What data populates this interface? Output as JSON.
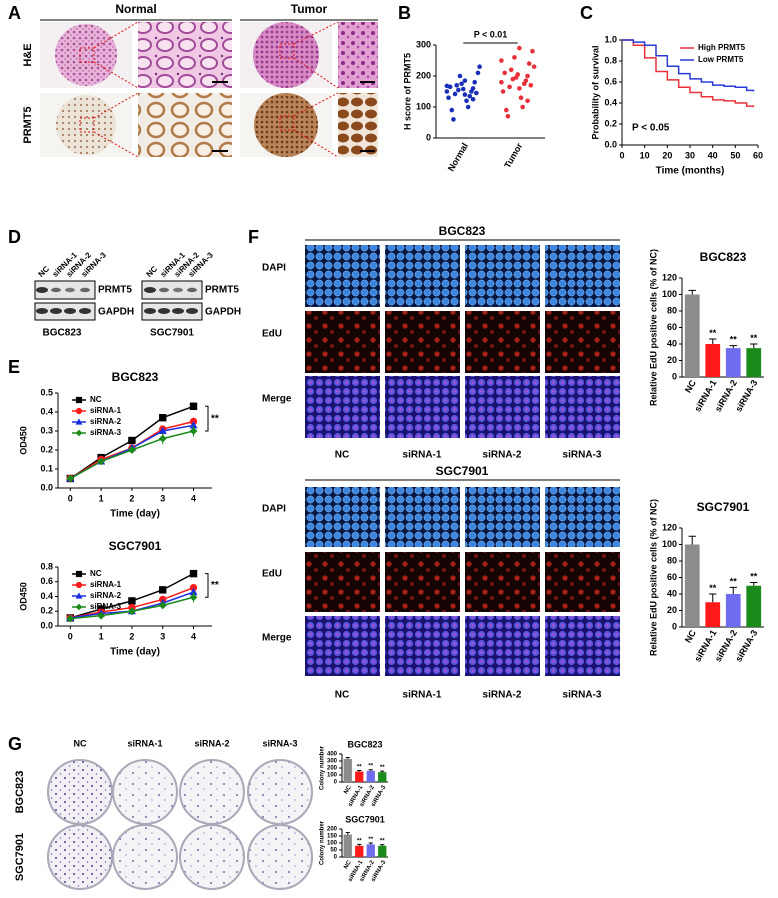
{
  "panels": {
    "labels": [
      "A",
      "B",
      "C",
      "D",
      "E",
      "F",
      "G"
    ]
  },
  "panel_a": {
    "columns": [
      "Normal",
      "Tumor"
    ],
    "rows": [
      "H&E",
      "PRMT5"
    ]
  },
  "panel_d": {
    "lanes": [
      "NC",
      "siRNA-1",
      "siRNA-2",
      "siRNA-3"
    ],
    "bands": [
      "PRMT5",
      "GAPDH"
    ],
    "cell_lines": [
      "BGC823",
      "SGC7901"
    ]
  },
  "panel_f": {
    "cell_lines": [
      "BGC823",
      "SGC7901"
    ],
    "rows": [
      "DAPI",
      "EdU",
      "Merge"
    ],
    "columns": [
      "NC",
      "siRNA-1",
      "siRNA-2",
      "siRNA-3"
    ]
  },
  "panel_g": {
    "columns": [
      "NC",
      "siRNA-1",
      "siRNA-2",
      "siRNA-3"
    ],
    "rows": [
      "BGC823",
      "SGC7901"
    ]
  },
  "chart_data": [
    {
      "type": "scatter",
      "y_label": "H score of PRMT5",
      "annotation": "P < 0.01",
      "categories": [
        "Normal",
        "Tumor"
      ],
      "groups": [
        {
          "color": "#1a2fb8",
          "values": [
            150,
            160,
            140,
            170,
            130,
            180,
            120,
            155,
            165,
            145,
            100,
            200,
            90,
            210,
            135,
            175,
            60,
            230,
            150,
            158,
            142,
            168,
            125,
            185
          ]
        },
        {
          "color": "#e8303a",
          "values": [
            180,
            200,
            160,
            220,
            150,
            240,
            130,
            190,
            210,
            170,
            100,
            260,
            90,
            280,
            175,
            195,
            70,
            230,
            185,
            205,
            165,
            250,
            120,
            290
          ]
        }
      ],
      "ylim": [
        0,
        300
      ],
      "yticks": [
        0,
        100,
        200,
        300
      ]
    },
    {
      "type": "line",
      "step": true,
      "y_label": "Probability of survival",
      "x_label": "Time (months)",
      "annotation": "P < 0.05",
      "legend": "upper right",
      "x": [
        0,
        5,
        10,
        15,
        20,
        25,
        30,
        35,
        40,
        45,
        50,
        55,
        58
      ],
      "series": [
        {
          "name": "High PRMT5",
          "color": "#e8303a",
          "values": [
            1.0,
            0.95,
            0.83,
            0.7,
            0.62,
            0.55,
            0.5,
            0.46,
            0.43,
            0.42,
            0.4,
            0.37,
            0.36
          ]
        },
        {
          "name": "Low PRMT5",
          "color": "#2a3bd8",
          "values": [
            1.0,
            0.98,
            0.95,
            0.85,
            0.75,
            0.68,
            0.63,
            0.6,
            0.57,
            0.56,
            0.55,
            0.52,
            0.51
          ]
        }
      ],
      "xlim": [
        0,
        60
      ],
      "xticks": [
        0,
        10,
        20,
        30,
        40,
        50,
        60
      ],
      "ylim": [
        0,
        1
      ],
      "yticks": [
        {
          "value": 0,
          "label": "0.0"
        },
        0.2,
        0.4,
        0.6,
        0.8,
        {
          "value": 1,
          "label": "1.0"
        }
      ]
    },
    {
      "type": "line",
      "title": "BGC823",
      "x_label": "Time (day)",
      "y_label": "OD450",
      "annotation": "**",
      "legend": "upper left",
      "x": [
        0,
        1,
        2,
        3,
        4
      ],
      "xlim": [
        -0.4,
        4.6
      ],
      "xticks": [
        0,
        1,
        2,
        3,
        4
      ],
      "ylim": [
        0,
        0.5
      ],
      "yticks": [
        {
          "value": 0,
          "label": "0.0"
        },
        0.1,
        0.2,
        0.3,
        0.4,
        0.5
      ],
      "series": [
        {
          "name": "NC",
          "color": "#000000",
          "marker": "square",
          "values": [
            0.05,
            0.16,
            0.25,
            0.37,
            0.43
          ],
          "errors": [
            0.005,
            0.01,
            0.01,
            0.01,
            0.02
          ]
        },
        {
          "name": "siRNA-1",
          "color": "#ff1a1a",
          "marker": "circle",
          "values": [
            0.05,
            0.15,
            0.21,
            0.31,
            0.35
          ],
          "errors": [
            0.005,
            0.01,
            0.01,
            0.01,
            0.02
          ]
        },
        {
          "name": "siRNA-2",
          "color": "#1a2fe0",
          "marker": "triangle",
          "values": [
            0.05,
            0.14,
            0.21,
            0.3,
            0.33
          ],
          "errors": [
            0.005,
            0.01,
            0.01,
            0.02,
            0.02
          ]
        },
        {
          "name": "siRNA-3",
          "color": "#1a8a1a",
          "marker": "diamond",
          "values": [
            0.05,
            0.14,
            0.2,
            0.26,
            0.3
          ],
          "errors": [
            0.005,
            0.01,
            0.01,
            0.03,
            0.03
          ]
        }
      ]
    },
    {
      "type": "line",
      "title": "SGC7901",
      "x_label": "Time (day)",
      "y_label": "OD450",
      "annotation": "**",
      "legend": "upper left",
      "x": [
        0,
        1,
        2,
        3,
        4
      ],
      "xlim": [
        -0.4,
        4.6
      ],
      "xticks": [
        0,
        1,
        2,
        3,
        4
      ],
      "ylim": [
        0,
        0.8
      ],
      "yticks": [
        {
          "value": 0,
          "label": "0.0"
        },
        0.2,
        0.4,
        0.6,
        0.8
      ],
      "series": [
        {
          "name": "NC",
          "color": "#000000",
          "marker": "square",
          "values": [
            0.11,
            0.23,
            0.34,
            0.49,
            0.71
          ],
          "errors": [
            0.01,
            0.02,
            0.02,
            0.02,
            0.04
          ]
        },
        {
          "name": "siRNA-1",
          "color": "#ff1a1a",
          "marker": "circle",
          "values": [
            0.11,
            0.19,
            0.25,
            0.36,
            0.52
          ],
          "errors": [
            0.01,
            0.02,
            0.03,
            0.04,
            0.05
          ]
        },
        {
          "name": "siRNA-2",
          "color": "#1a2fe0",
          "marker": "triangle",
          "values": [
            0.11,
            0.17,
            0.2,
            0.31,
            0.46
          ],
          "errors": [
            0.01,
            0.03,
            0.05,
            0.05,
            0.06
          ]
        },
        {
          "name": "siRNA-3",
          "color": "#1a8a1a",
          "marker": "diamond",
          "values": [
            0.1,
            0.14,
            0.2,
            0.28,
            0.39
          ],
          "errors": [
            0.01,
            0.02,
            0.03,
            0.04,
            0.07
          ]
        }
      ]
    },
    {
      "type": "bar",
      "title": "BGC823",
      "y_label": "Relative EdU positive cells (% of NC)",
      "categories": [
        "NC",
        "siRNA-1",
        "siRNA-2",
        "siRNA-3"
      ],
      "colors": [
        "#8c8c8c",
        "#ff1a1a",
        "#6f6cf0",
        "#1a8a1a"
      ],
      "values": [
        100,
        40,
        35,
        35
      ],
      "errors": [
        5,
        6,
        3,
        5
      ],
      "significance": [
        null,
        "**",
        "**",
        "**"
      ],
      "ylim": [
        0,
        120
      ],
      "yticks": [
        0,
        20,
        40,
        60,
        80,
        100,
        120
      ]
    },
    {
      "type": "bar",
      "title": "SGC7901",
      "y_label": "Relative EdU positive cells (% of NC)",
      "categories": [
        "NC",
        "siRNA-1",
        "siRNA-2",
        "siRNA-3"
      ],
      "colors": [
        "#8c8c8c",
        "#ff1a1a",
        "#6f6cf0",
        "#1a8a1a"
      ],
      "values": [
        100,
        30,
        40,
        50
      ],
      "errors": [
        10,
        10,
        8,
        4
      ],
      "significance": [
        null,
        "**",
        "**",
        "**"
      ],
      "ylim": [
        0,
        120
      ],
      "yticks": [
        0,
        20,
        40,
        60,
        80,
        100,
        120
      ]
    },
    {
      "type": "bar",
      "title": "BGC823",
      "y_label": "Colony number",
      "categories": [
        "NC",
        "siRNA-1",
        "siRNA-2",
        "siRNA-3"
      ],
      "colors": [
        "#8c8c8c",
        "#ff1a1a",
        "#6f6cf0",
        "#1a8a1a"
      ],
      "values": [
        330,
        150,
        160,
        140
      ],
      "errors": [
        20,
        15,
        15,
        15
      ],
      "significance": [
        null,
        "**",
        "**",
        "**"
      ],
      "ylim": [
        0,
        400
      ],
      "yticks": [
        0,
        100,
        200,
        300,
        400
      ]
    },
    {
      "type": "bar",
      "title": "SGC7901",
      "y_label": "Colony number",
      "categories": [
        "NC",
        "siRNA-1",
        "siRNA-2",
        "siRNA-3"
      ],
      "colors": [
        "#8c8c8c",
        "#ff1a1a",
        "#6f6cf0",
        "#1a8a1a"
      ],
      "values": [
        160,
        80,
        90,
        80
      ],
      "errors": [
        15,
        10,
        10,
        8
      ],
      "significance": [
        null,
        "**",
        "**",
        "**"
      ],
      "ylim": [
        0,
        200
      ],
      "yticks": [
        0,
        50,
        100,
        150,
        200
      ]
    }
  ]
}
